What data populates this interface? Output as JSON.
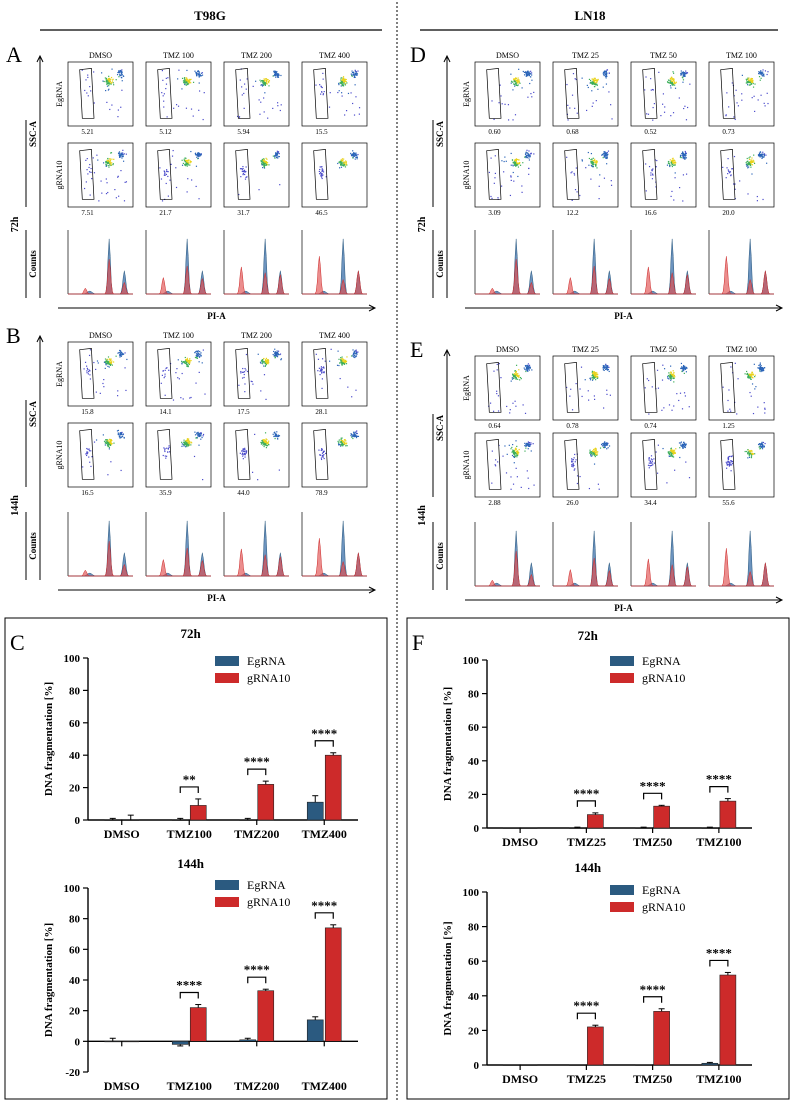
{
  "figure": {
    "left_title": "T98G",
    "right_title": "LN18",
    "panels": {
      "A": {
        "letter": "A",
        "time": "72h",
        "conditions": [
          "DMSO",
          "TMZ 100",
          "TMZ 200",
          "TMZ 400"
        ],
        "rows": [
          {
            "label": "EgRNA",
            "values": [
              "5.21",
              "5.12",
              "5.94",
              "15.5"
            ]
          },
          {
            "label": "gRNA10",
            "values": [
              "7.51",
              "21.7",
              "31.7",
              "46.5"
            ]
          }
        ],
        "ssc_label": "SSC-A",
        "counts_label": "Counts",
        "pia_label": "PI-A"
      },
      "B": {
        "letter": "B",
        "time": "144h",
        "conditions": [
          "DMSO",
          "TMZ 100",
          "TMZ 200",
          "TMZ 400"
        ],
        "rows": [
          {
            "label": "EgRNA",
            "values": [
              "15.8",
              "14.1",
              "17.5",
              "28.1"
            ]
          },
          {
            "label": "gRNA10",
            "values": [
              "16.5",
              "35.9",
              "44.0",
              "78.9"
            ]
          }
        ],
        "ssc_label": "SSC-A",
        "counts_label": "Counts",
        "pia_label": "PI-A"
      },
      "D": {
        "letter": "D",
        "time": "72h",
        "conditions": [
          "DMSO",
          "TMZ 25",
          "TMZ 50",
          "TMZ 100"
        ],
        "rows": [
          {
            "label": "EgRNA",
            "values": [
              "0.60",
              "0.68",
              "0.52",
              "0.73"
            ]
          },
          {
            "label": "gRNA10",
            "values": [
              "3.09",
              "12.2",
              "16.6",
              "20.0"
            ]
          }
        ],
        "ssc_label": "SSC-A",
        "counts_label": "Counts",
        "pia_label": "PI-A"
      },
      "E": {
        "letter": "E",
        "time": "144h",
        "conditions": [
          "DMSO",
          "TMZ 25",
          "TMZ 50",
          "TMZ 100"
        ],
        "rows": [
          {
            "label": "EgRNA",
            "values": [
              "0.64",
              "0.78",
              "0.74",
              "1.25"
            ]
          },
          {
            "label": "gRNA10",
            "values": [
              "2.88",
              "26.0",
              "34.4",
              "55.6"
            ]
          }
        ],
        "ssc_label": "SSC-A",
        "counts_label": "Counts",
        "pia_label": "PI-A"
      }
    },
    "letter_C": "C",
    "letter_F": "F"
  },
  "colors": {
    "egrna": "#2b5a80",
    "grna10": "#cd2a2a"
  },
  "chart_data": [
    {
      "id": "c72",
      "type": "bar",
      "title": "72h",
      "ylabel": "DNA fragmentation [%]",
      "xlabel": "",
      "categories": [
        "DMSO",
        "TMZ100",
        "TMZ200",
        "TMZ400"
      ],
      "ylim": [
        0,
        100
      ],
      "yticks": [
        "0",
        "20",
        "40",
        "60",
        "80",
        "100"
      ],
      "series": [
        {
          "name": "EgRNA",
          "values": [
            0,
            0,
            0,
            11
          ],
          "errors": [
            1,
            1,
            1,
            4
          ]
        },
        {
          "name": "gRNA10",
          "values": [
            0,
            9,
            22,
            40
          ],
          "errors": [
            3,
            4,
            2,
            1.5
          ]
        }
      ],
      "significance": [
        "",
        "**",
        "****",
        "****"
      ]
    },
    {
      "id": "c144",
      "type": "bar",
      "title": "144h",
      "ylabel": "DNA fragmentation [%]",
      "xlabel": "",
      "categories": [
        "DMSO",
        "TMZ100",
        "TMZ200",
        "TMZ400"
      ],
      "ylim": [
        -20,
        100
      ],
      "yticks": [
        "-20",
        "0",
        "20",
        "40",
        "60",
        "80",
        "100"
      ],
      "series": [
        {
          "name": "EgRNA",
          "values": [
            0,
            -2,
            1,
            14
          ],
          "errors": [
            2,
            1,
            1,
            2
          ]
        },
        {
          "name": "gRNA10",
          "values": [
            0,
            22,
            33,
            74
          ],
          "errors": [
            0,
            2,
            1,
            2
          ]
        }
      ],
      "significance": [
        "",
        "****",
        "****",
        "****"
      ]
    },
    {
      "id": "f72",
      "type": "bar",
      "title": "72h",
      "ylabel": "DNA fragmentation [%]",
      "xlabel": "",
      "categories": [
        "DMSO",
        "TMZ25",
        "TMZ50",
        "TMZ100"
      ],
      "ylim": [
        0,
        100
      ],
      "yticks": [
        "0",
        "20",
        "40",
        "60",
        "80",
        "100"
      ],
      "series": [
        {
          "name": "EgRNA",
          "values": [
            0,
            0,
            0,
            0
          ],
          "errors": [
            0,
            0.5,
            0.5,
            0.5
          ]
        },
        {
          "name": "gRNA10",
          "values": [
            0,
            8,
            13,
            16
          ],
          "errors": [
            0,
            1,
            0.5,
            1.5
          ]
        }
      ],
      "significance": [
        "",
        "****",
        "****",
        "****"
      ]
    },
    {
      "id": "f144",
      "type": "bar",
      "title": "144h",
      "ylabel": "DNA fragmentation [%]",
      "xlabel": "",
      "categories": [
        "DMSO",
        "TMZ25",
        "TMZ50",
        "TMZ100"
      ],
      "ylim": [
        0,
        100
      ],
      "yticks": [
        "0",
        "20",
        "40",
        "60",
        "80",
        "100"
      ],
      "series": [
        {
          "name": "EgRNA",
          "values": [
            0,
            0,
            0,
            1
          ],
          "errors": [
            0,
            0,
            0,
            0.5
          ]
        },
        {
          "name": "gRNA10",
          "values": [
            0,
            22,
            31,
            52
          ],
          "errors": [
            0,
            1,
            1.5,
            1.5
          ]
        }
      ],
      "significance": [
        "",
        "****",
        "****",
        "****"
      ]
    }
  ]
}
